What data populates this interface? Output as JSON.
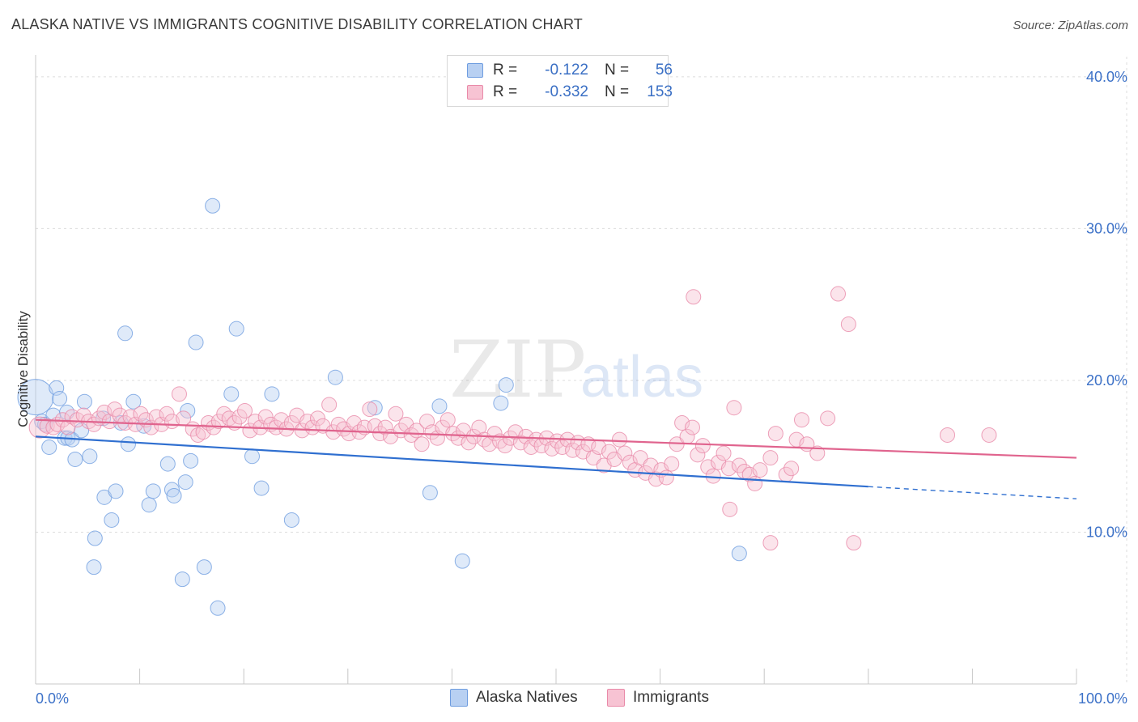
{
  "header": {
    "title": "ALASKA NATIVE VS IMMIGRANTS COGNITIVE DISABILITY CORRELATION CHART",
    "source": "Source: ZipAtlas.com"
  },
  "watermark": {
    "zip": "ZIP",
    "atlas": "atlas"
  },
  "legend": {
    "rows": [
      {
        "r_label": "R =",
        "r_value": "-0.122",
        "n_label": "N =",
        "n_value": "56"
      },
      {
        "r_label": "R =",
        "r_value": "-0.332",
        "n_label": "N =",
        "n_value": "153"
      }
    ]
  },
  "chart_data": {
    "type": "scatter",
    "title": "ALASKA NATIVE VS IMMIGRANTS COGNITIVE DISABILITY CORRELATION CHART",
    "xlabel": "",
    "ylabel": "Cognitive Disability",
    "xlim": [
      0,
      100
    ],
    "ylim": [
      0,
      40
    ],
    "x_tick_labels": [
      "0.0%",
      "100.0%"
    ],
    "y_ticks": [
      10,
      20,
      30,
      40
    ],
    "y_tick_labels": [
      "10.0%",
      "20.0%",
      "30.0%",
      "40.0%"
    ],
    "grid": true,
    "legend_position": "top-center",
    "colors": {
      "alaska_fill": "#b8d0f2",
      "alaska_stroke": "#6f9de0",
      "alaska_line": "#2f6fd0",
      "imm_fill": "#f7c3d3",
      "imm_stroke": "#e98aa9",
      "imm_line": "#e0648e",
      "axis_text": "#3d72c8"
    },
    "series": [
      {
        "name": "Alaska Natives",
        "r": -0.122,
        "n": 56,
        "trend": {
          "x_start": 0,
          "y_start": 16.3,
          "x_solid_end": 80,
          "y_solid_end": 13.0,
          "x_end": 100,
          "y_end": 12.2
        },
        "points": [
          [
            0.0,
            18.9,
            3
          ],
          [
            0.6,
            17.3,
            1
          ],
          [
            0.9,
            17.1,
            1
          ],
          [
            1.3,
            15.6,
            1
          ],
          [
            1.7,
            17.7,
            1
          ],
          [
            2.0,
            19.5,
            1
          ],
          [
            2.3,
            18.8,
            1
          ],
          [
            2.8,
            16.2,
            1
          ],
          [
            3.0,
            17.9,
            1
          ],
          [
            3.1,
            16.2,
            1
          ],
          [
            3.5,
            16.1,
            1
          ],
          [
            3.8,
            14.8,
            1
          ],
          [
            4.4,
            16.7,
            1
          ],
          [
            4.7,
            18.6,
            1
          ],
          [
            5.2,
            15.0,
            1
          ],
          [
            5.6,
            7.7,
            1
          ],
          [
            5.7,
            9.6,
            1
          ],
          [
            6.5,
            17.5,
            1
          ],
          [
            6.6,
            12.3,
            1
          ],
          [
            7.3,
            10.8,
            1
          ],
          [
            7.7,
            12.7,
            1
          ],
          [
            8.2,
            17.2,
            1
          ],
          [
            8.6,
            23.1,
            1
          ],
          [
            8.9,
            15.8,
            1
          ],
          [
            9.4,
            18.6,
            1
          ],
          [
            10.4,
            17.0,
            1
          ],
          [
            10.9,
            11.8,
            1
          ],
          [
            11.3,
            12.7,
            1
          ],
          [
            12.7,
            14.5,
            1
          ],
          [
            13.1,
            12.8,
            1
          ],
          [
            13.3,
            12.4,
            1
          ],
          [
            14.1,
            6.9,
            1
          ],
          [
            14.4,
            13.3,
            1
          ],
          [
            14.6,
            18.0,
            1
          ],
          [
            14.9,
            14.7,
            1
          ],
          [
            15.4,
            22.5,
            1
          ],
          [
            16.2,
            7.7,
            1
          ],
          [
            17.0,
            31.5,
            1
          ],
          [
            17.5,
            5.0,
            1
          ],
          [
            18.8,
            19.1,
            1
          ],
          [
            19.3,
            23.4,
            1
          ],
          [
            20.8,
            15.0,
            1
          ],
          [
            21.7,
            12.9,
            1
          ],
          [
            22.7,
            19.1,
            1
          ],
          [
            24.6,
            10.8,
            1
          ],
          [
            28.8,
            20.2,
            1
          ],
          [
            32.6,
            18.2,
            1
          ],
          [
            37.9,
            12.6,
            1
          ],
          [
            38.8,
            18.3,
            1
          ],
          [
            41.0,
            8.1,
            1
          ],
          [
            44.7,
            18.5,
            1
          ],
          [
            45.2,
            19.7,
            1
          ],
          [
            67.6,
            8.6,
            1
          ]
        ]
      },
      {
        "name": "Immigrants",
        "r": -0.332,
        "n": 153,
        "trend": {
          "x_start": 0,
          "y_start": 17.4,
          "x_end": 100,
          "y_end": 14.9
        },
        "points": [
          [
            0.4,
            16.9,
            2
          ],
          [
            1.1,
            17.0,
            1
          ],
          [
            1.7,
            16.9,
            1
          ],
          [
            2.1,
            17.1,
            1
          ],
          [
            2.6,
            17.4,
            1
          ],
          [
            3.1,
            16.9,
            1
          ],
          [
            3.5,
            17.6,
            1
          ],
          [
            4.0,
            17.4,
            1
          ],
          [
            4.6,
            17.7,
            1
          ],
          [
            5.1,
            17.3,
            1
          ],
          [
            5.6,
            17.1,
            1
          ],
          [
            6.1,
            17.5,
            1
          ],
          [
            6.6,
            17.9,
            1
          ],
          [
            7.1,
            17.3,
            1
          ],
          [
            7.6,
            18.1,
            1
          ],
          [
            8.1,
            17.7,
            1
          ],
          [
            8.6,
            17.2,
            1
          ],
          [
            9.1,
            17.6,
            1
          ],
          [
            9.6,
            17.1,
            1
          ],
          [
            10.1,
            17.8,
            1
          ],
          [
            10.6,
            17.4,
            1
          ],
          [
            11.1,
            16.9,
            1
          ],
          [
            11.6,
            17.6,
            1
          ],
          [
            12.1,
            17.1,
            1
          ],
          [
            12.6,
            17.8,
            1
          ],
          [
            13.1,
            17.3,
            1
          ],
          [
            13.8,
            19.1,
            1
          ],
          [
            14.2,
            17.5,
            1
          ],
          [
            15.1,
            16.8,
            1
          ],
          [
            15.6,
            16.4,
            1
          ],
          [
            16.1,
            16.6,
            1
          ],
          [
            16.6,
            17.2,
            1
          ],
          [
            17.1,
            16.9,
            1
          ],
          [
            17.6,
            17.3,
            1
          ],
          [
            18.1,
            17.8,
            1
          ],
          [
            18.6,
            17.5,
            1
          ],
          [
            19.1,
            17.2,
            1
          ],
          [
            19.6,
            17.6,
            1
          ],
          [
            20.1,
            18.0,
            1
          ],
          [
            20.6,
            16.7,
            1
          ],
          [
            21.1,
            17.3,
            1
          ],
          [
            21.6,
            16.9,
            1
          ],
          [
            22.1,
            17.6,
            1
          ],
          [
            22.6,
            17.1,
            1
          ],
          [
            23.1,
            16.9,
            1
          ],
          [
            23.6,
            17.4,
            1
          ],
          [
            24.1,
            16.8,
            1
          ],
          [
            24.6,
            17.2,
            1
          ],
          [
            25.1,
            17.7,
            1
          ],
          [
            25.6,
            16.7,
            1
          ],
          [
            26.1,
            17.3,
            1
          ],
          [
            26.6,
            16.9,
            1
          ],
          [
            27.1,
            17.5,
            1
          ],
          [
            27.6,
            17.0,
            1
          ],
          [
            28.2,
            18.4,
            1
          ],
          [
            28.6,
            16.6,
            1
          ],
          [
            29.1,
            17.1,
            1
          ],
          [
            29.6,
            16.8,
            1
          ],
          [
            30.1,
            16.5,
            1
          ],
          [
            30.6,
            17.2,
            1
          ],
          [
            31.1,
            16.6,
            1
          ],
          [
            31.6,
            16.9,
            1
          ],
          [
            32.1,
            18.1,
            1
          ],
          [
            32.6,
            17.0,
            1
          ],
          [
            33.1,
            16.5,
            1
          ],
          [
            33.6,
            16.9,
            1
          ],
          [
            34.1,
            16.3,
            1
          ],
          [
            34.6,
            17.8,
            1
          ],
          [
            35.1,
            16.7,
            1
          ],
          [
            35.6,
            17.1,
            1
          ],
          [
            36.1,
            16.4,
            1
          ],
          [
            36.6,
            16.7,
            1
          ],
          [
            37.1,
            15.8,
            1
          ],
          [
            37.6,
            17.3,
            1
          ],
          [
            38.1,
            16.6,
            1
          ],
          [
            38.6,
            16.2,
            1
          ],
          [
            39.1,
            16.9,
            1
          ],
          [
            39.6,
            17.4,
            1
          ],
          [
            40.1,
            16.5,
            1
          ],
          [
            40.6,
            16.2,
            1
          ],
          [
            41.1,
            16.7,
            1
          ],
          [
            41.6,
            15.9,
            1
          ],
          [
            42.1,
            16.3,
            1
          ],
          [
            42.6,
            16.9,
            1
          ],
          [
            43.1,
            16.1,
            1
          ],
          [
            43.6,
            15.8,
            1
          ],
          [
            44.1,
            16.5,
            1
          ],
          [
            44.6,
            16.0,
            1
          ],
          [
            45.1,
            15.7,
            1
          ],
          [
            45.6,
            16.2,
            1
          ],
          [
            46.1,
            16.6,
            1
          ],
          [
            46.6,
            15.9,
            1
          ],
          [
            47.1,
            16.3,
            1
          ],
          [
            47.6,
            15.6,
            1
          ],
          [
            48.1,
            16.1,
            1
          ],
          [
            48.6,
            15.7,
            1
          ],
          [
            49.1,
            16.2,
            1
          ],
          [
            49.6,
            15.5,
            1
          ],
          [
            50.1,
            16.0,
            1
          ],
          [
            50.6,
            15.6,
            1
          ],
          [
            51.1,
            16.1,
            1
          ],
          [
            51.6,
            15.4,
            1
          ],
          [
            52.1,
            15.9,
            1
          ],
          [
            52.6,
            15.3,
            1
          ],
          [
            53.1,
            15.8,
            1
          ],
          [
            53.6,
            14.9,
            1
          ],
          [
            54.1,
            15.6,
            1
          ],
          [
            54.6,
            14.4,
            1
          ],
          [
            55.1,
            15.3,
            1
          ],
          [
            55.6,
            14.8,
            1
          ],
          [
            56.1,
            16.1,
            1
          ],
          [
            56.6,
            15.2,
            1
          ],
          [
            57.1,
            14.6,
            1
          ],
          [
            57.6,
            14.1,
            1
          ],
          [
            58.1,
            14.9,
            1
          ],
          [
            58.6,
            13.9,
            1
          ],
          [
            59.1,
            14.4,
            1
          ],
          [
            59.6,
            13.5,
            1
          ],
          [
            60.1,
            14.1,
            1
          ],
          [
            60.6,
            13.6,
            1
          ],
          [
            61.1,
            14.5,
            1
          ],
          [
            61.6,
            15.8,
            1
          ],
          [
            62.1,
            17.2,
            1
          ],
          [
            62.6,
            16.3,
            1
          ],
          [
            63.1,
            16.9,
            1
          ],
          [
            63.6,
            15.1,
            1
          ],
          [
            64.1,
            15.7,
            1
          ],
          [
            64.6,
            14.3,
            1
          ],
          [
            65.1,
            13.7,
            1
          ],
          [
            65.6,
            14.6,
            1
          ],
          [
            66.1,
            15.2,
            1
          ],
          [
            66.6,
            14.2,
            1
          ],
          [
            67.1,
            18.2,
            1
          ],
          [
            67.6,
            14.4,
            1
          ],
          [
            68.1,
            14.0,
            1
          ],
          [
            68.6,
            13.8,
            1
          ],
          [
            69.1,
            13.2,
            1
          ],
          [
            69.6,
            14.1,
            1
          ],
          [
            70.6,
            14.9,
            1
          ],
          [
            71.1,
            16.5,
            1
          ],
          [
            72.1,
            13.8,
            1
          ],
          [
            72.6,
            14.2,
            1
          ],
          [
            73.1,
            16.1,
            1
          ],
          [
            73.6,
            17.4,
            1
          ],
          [
            74.1,
            15.8,
            1
          ],
          [
            75.1,
            15.2,
            1
          ],
          [
            76.1,
            17.5,
            1
          ],
          [
            77.1,
            25.7,
            1
          ],
          [
            78.1,
            23.7,
            1
          ],
          [
            78.6,
            9.3,
            1
          ],
          [
            63.2,
            25.5,
            1
          ],
          [
            66.7,
            11.5,
            1
          ],
          [
            70.6,
            9.3,
            1
          ],
          [
            87.6,
            16.4,
            1
          ],
          [
            91.6,
            16.4,
            1
          ]
        ]
      }
    ]
  },
  "bottom_legend": {
    "items": [
      {
        "label": "Alaska Natives"
      },
      {
        "label": "Immigrants"
      }
    ]
  }
}
